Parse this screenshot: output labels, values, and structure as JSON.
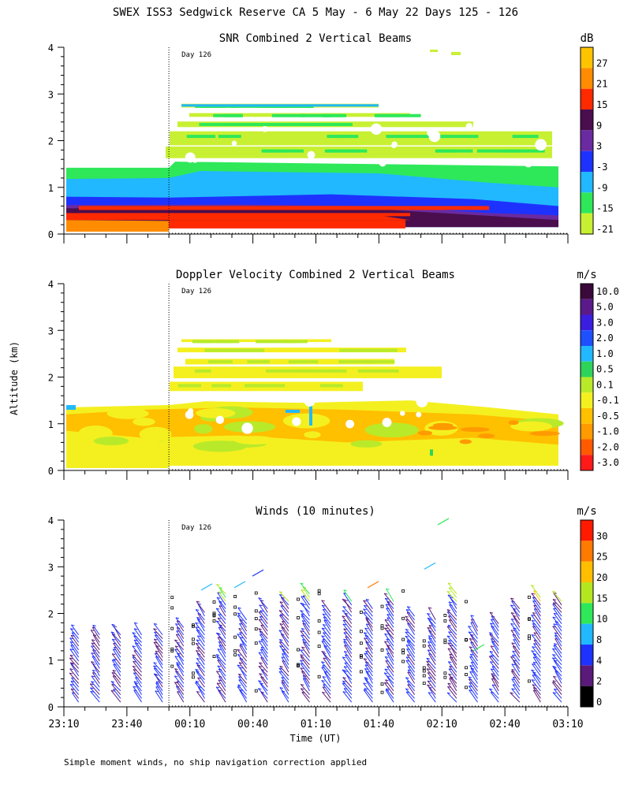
{
  "figure_title": "SWEX ISS3 Sedgwick Reserve CA   5 May -  6 May 22 Days 125 - 126",
  "footer_note": "Simple moment winds, no ship navigation correction applied",
  "shared": {
    "ylabel": "Altitude (km)",
    "xlabel": "Time (UT)",
    "x_ticks": [
      "23:10",
      "23:40",
      "00:10",
      "00:40",
      "01:10",
      "01:40",
      "02:10",
      "02:40",
      "03:10"
    ],
    "y_ticks": [
      "0",
      "1",
      "2",
      "3",
      "4"
    ],
    "day_label": "Day 126"
  },
  "chart_data": [
    {
      "type": "heatmap",
      "title": "SNR Combined 2 Vertical Beams",
      "units": "dB",
      "x_range": [
        "23:10",
        "03:10"
      ],
      "ylim": [
        0,
        4
      ],
      "day_boundary": "00:00",
      "colorbar_labels": [
        "27",
        "21",
        "15",
        "9",
        "3",
        "-3",
        "-9",
        "-15",
        "-21"
      ],
      "colorbar_colors": [
        "#ffc400",
        "#ff8c00",
        "#ff2a00",
        "#4a0e4e",
        "#6a2aa0",
        "#1e32ff",
        "#21b8ff",
        "#2ee85a",
        "#c8f032"
      ],
      "description_layers": [
        {
          "from_km": 0.0,
          "to_km": 0.15,
          "color": "#ff8c00"
        },
        {
          "from_km": 0.15,
          "to_km": 0.35,
          "color": "#ff2a00"
        },
        {
          "from_km": 0.35,
          "to_km": 0.7,
          "color": "#4a0e4e"
        },
        {
          "from_km": 0.7,
          "to_km": 1.0,
          "color": "#1e32ff"
        },
        {
          "from_km": 1.0,
          "to_km": 1.4,
          "color": "#21b8ff"
        }
      ]
    },
    {
      "type": "heatmap",
      "title": "Doppler Velocity Combined 2 Vertical Beams",
      "units": "m/s",
      "x_range": [
        "23:10",
        "03:10"
      ],
      "ylim": [
        0,
        4
      ],
      "day_boundary": "00:00",
      "colorbar_labels": [
        "10.0",
        "5.0",
        "3.0",
        "2.0",
        "1.0",
        "0.5",
        "0.1",
        "-0.1",
        "-0.5",
        "-1.0",
        "-2.0",
        "-3.0"
      ],
      "colorbar_colors": [
        "#3a0a3a",
        "#5a1a8a",
        "#3a1ee0",
        "#1e50ff",
        "#21b8ff",
        "#2ed45a",
        "#b8ea2a",
        "#f4f020",
        "#ffc000",
        "#ff9a00",
        "#ff5a00",
        "#ff1a1a"
      ]
    },
    {
      "type": "scatter",
      "title": "Winds (10 minutes)",
      "units": "m/s",
      "x_range": [
        "23:10",
        "03:10"
      ],
      "ylim": [
        0,
        4
      ],
      "day_boundary": "00:00",
      "colorbar_labels": [
        "30",
        "25",
        "20",
        "15",
        "10",
        "8",
        "4",
        "2",
        "0"
      ],
      "colorbar_colors": [
        "#ff1a00",
        "#ff7a00",
        "#ffbe00",
        "#b4e620",
        "#2ee85a",
        "#21b8ff",
        "#1e32ff",
        "#5a1a7a",
        "#000000"
      ],
      "barb_times": [
        "23:17",
        "23:27",
        "23:37",
        "23:47",
        "23:57",
        "00:07",
        "00:17",
        "00:27",
        "00:37",
        "00:47",
        "00:57",
        "01:07",
        "01:17",
        "01:27",
        "01:37",
        "01:47",
        "01:57",
        "02:07",
        "02:17",
        "02:27",
        "02:37",
        "02:47",
        "02:57",
        "03:07"
      ]
    }
  ]
}
